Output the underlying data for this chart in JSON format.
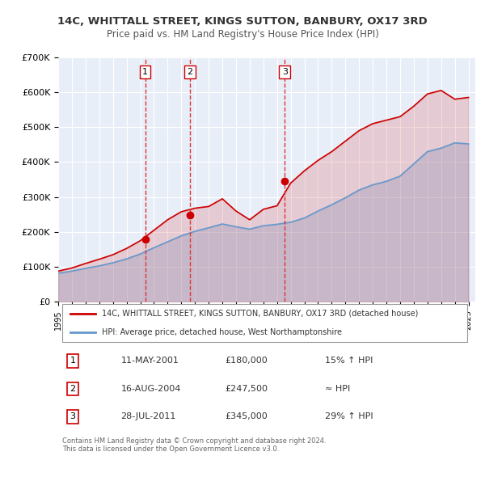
{
  "title": "14C, WHITTALL STREET, KINGS SUTTON, BANBURY, OX17 3RD",
  "subtitle": "Price paid vs. HM Land Registry's House Price Index (HPI)",
  "xlabel": "",
  "ylabel": "",
  "ylim": [
    0,
    700000
  ],
  "yticks": [
    0,
    100000,
    200000,
    300000,
    400000,
    500000,
    600000,
    700000
  ],
  "ytick_labels": [
    "£0",
    "£100K",
    "£200K",
    "£300K",
    "£400K",
    "£500K",
    "£600K",
    "£700K"
  ],
  "xlim_start": 1995.0,
  "xlim_end": 2025.5,
  "background_color": "#f0f4fa",
  "plot_bg_color": "#e8eef8",
  "grid_color": "#ffffff",
  "property_color": "#cc0000",
  "hpi_color": "#6699cc",
  "sale_dates": [
    2001.36,
    2004.62,
    2011.57
  ],
  "sale_prices": [
    180000,
    247500,
    345000
  ],
  "sale_labels": [
    "1",
    "2",
    "3"
  ],
  "vline_color": "#dd3333",
  "legend_property": "14C, WHITTALL STREET, KINGS SUTTON, BANBURY, OX17 3RD (detached house)",
  "legend_hpi": "HPI: Average price, detached house, West Northamptonshire",
  "table_rows": [
    [
      "1",
      "11-MAY-2001",
      "£180,000",
      "15% ↑ HPI"
    ],
    [
      "2",
      "16-AUG-2004",
      "£247,500",
      "≈ HPI"
    ],
    [
      "3",
      "28-JUL-2011",
      "£345,000",
      "29% ↑ HPI"
    ]
  ],
  "footer": "Contains HM Land Registry data © Crown copyright and database right 2024.\nThis data is licensed under the Open Government Licence v3.0.",
  "hpi_data_years": [
    1995,
    1996,
    1997,
    1998,
    1999,
    2000,
    2001,
    2002,
    2003,
    2004,
    2005,
    2006,
    2007,
    2008,
    2009,
    2010,
    2011,
    2012,
    2013,
    2014,
    2015,
    2016,
    2017,
    2018,
    2019,
    2020,
    2021,
    2022,
    2023,
    2024,
    2025
  ],
  "hpi_values": [
    82000,
    88000,
    96000,
    103000,
    112000,
    123000,
    137000,
    155000,
    172000,
    189000,
    202000,
    212000,
    223000,
    215000,
    208000,
    218000,
    222000,
    228000,
    240000,
    260000,
    278000,
    298000,
    320000,
    335000,
    345000,
    360000,
    395000,
    430000,
    440000,
    455000,
    452000
  ],
  "prop_data_years": [
    1995,
    1996,
    1997,
    1998,
    1999,
    2000,
    2001,
    2002,
    2003,
    2004,
    2005,
    2006,
    2007,
    2008,
    2009,
    2010,
    2011,
    2012,
    2013,
    2014,
    2015,
    2016,
    2017,
    2018,
    2019,
    2020,
    2021,
    2022,
    2023,
    2024,
    2025
  ],
  "prop_values": [
    88000,
    97000,
    110000,
    122000,
    135000,
    153000,
    175000,
    205000,
    235000,
    258000,
    268000,
    273000,
    295000,
    260000,
    235000,
    265000,
    275000,
    340000,
    375000,
    405000,
    430000,
    460000,
    490000,
    510000,
    520000,
    530000,
    560000,
    595000,
    605000,
    580000,
    585000
  ]
}
